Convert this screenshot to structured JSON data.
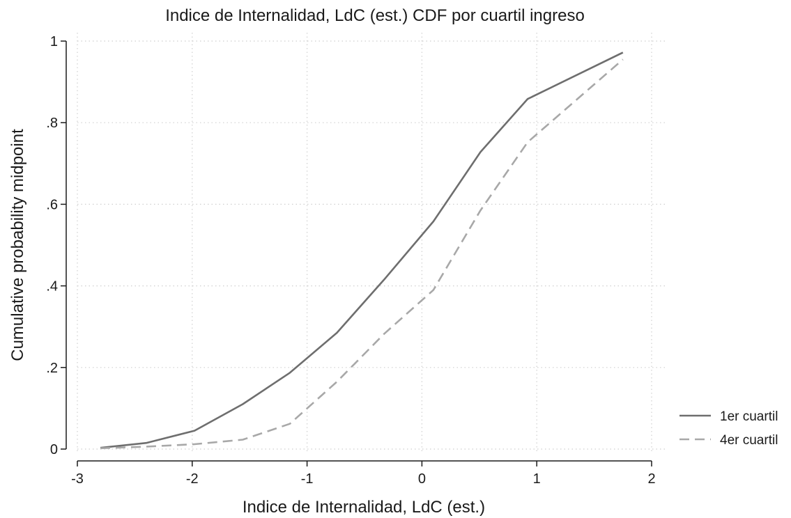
{
  "chart_data": {
    "type": "line",
    "title": "Indice de Internalidad, LdC (est.) CDF por cuartil ingreso",
    "xlabel": "Indice de Internalidad, LdC (est.)",
    "ylabel": "Cumulative probability midpoint",
    "xlim": [
      -3,
      2
    ],
    "ylim": [
      0,
      1
    ],
    "xticks": [
      -3,
      -2,
      -1,
      0,
      1,
      2
    ],
    "xtick_labels": [
      "-3",
      "-2",
      "-1",
      "0",
      "1",
      "2"
    ],
    "yticks": [
      0,
      0.2,
      0.4,
      0.6,
      0.8,
      1
    ],
    "ytick_labels": [
      "0",
      ".2",
      ".4",
      ".6",
      ".8",
      "1"
    ],
    "grid": true,
    "legend_position": "right",
    "series": [
      {
        "name": "1er cuartil",
        "color": "#6e6e6e",
        "style": "solid",
        "x": [
          -2.8,
          -2.4,
          -1.98,
          -1.56,
          -1.15,
          -0.74,
          -0.33,
          0.1,
          0.51,
          0.92,
          1.75
        ],
        "y": [
          0.003,
          0.015,
          0.045,
          0.11,
          0.187,
          0.285,
          0.415,
          0.558,
          0.728,
          0.858,
          0.972
        ]
      },
      {
        "name": "4er cuartil",
        "color": "#a8a8a8",
        "style": "dashed",
        "x": [
          -2.8,
          -2.4,
          -1.98,
          -1.56,
          -1.15,
          -0.74,
          -0.33,
          0.1,
          0.51,
          0.92,
          1.75
        ],
        "y": [
          0.002,
          0.006,
          0.012,
          0.023,
          0.062,
          0.165,
          0.282,
          0.39,
          0.585,
          0.752,
          0.955
        ]
      }
    ]
  }
}
